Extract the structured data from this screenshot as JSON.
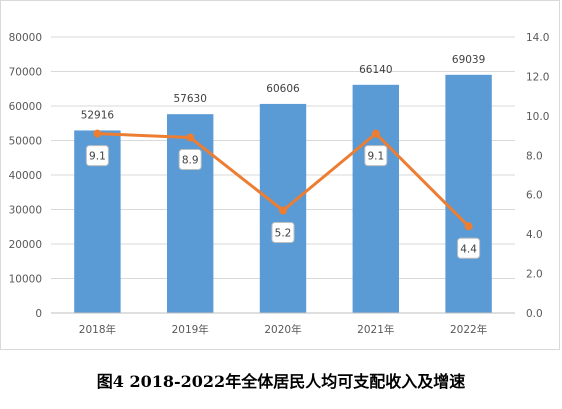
{
  "caption": "图4  2018-2022年全体居民人均可支配收入及增速",
  "chart_data": {
    "type": "bar+line",
    "categories": [
      "2018年",
      "2019年",
      "2020年",
      "2021年",
      "2022年"
    ],
    "series": [
      {
        "type": "bar",
        "values": [
          52916,
          57630,
          60606,
          66140,
          69039
        ],
        "color": "#5B9BD5",
        "axis": "left"
      },
      {
        "type": "line",
        "values": [
          9.1,
          8.9,
          5.2,
          9.1,
          4.4
        ],
        "color": "#ED7D31",
        "axis": "right"
      }
    ],
    "y_left": {
      "min": 0,
      "max": 80000,
      "step": 10000,
      "tick_labels": [
        "0",
        "10000",
        "20000",
        "30000",
        "40000",
        "50000",
        "60000",
        "70000",
        "80000"
      ]
    },
    "y_right": {
      "min": 0,
      "max": 14,
      "step": 2,
      "tick_labels": [
        "0.0",
        "2.0",
        "4.0",
        "6.0",
        "8.0",
        "10.0",
        "12.0",
        "14.0"
      ]
    },
    "bar_labels": [
      "52916",
      "57630",
      "60606",
      "66140",
      "69039"
    ],
    "line_labels": [
      "9.1",
      "8.9",
      "5.2",
      "9.1",
      "4.4"
    ],
    "grid": true,
    "legend": "none"
  }
}
